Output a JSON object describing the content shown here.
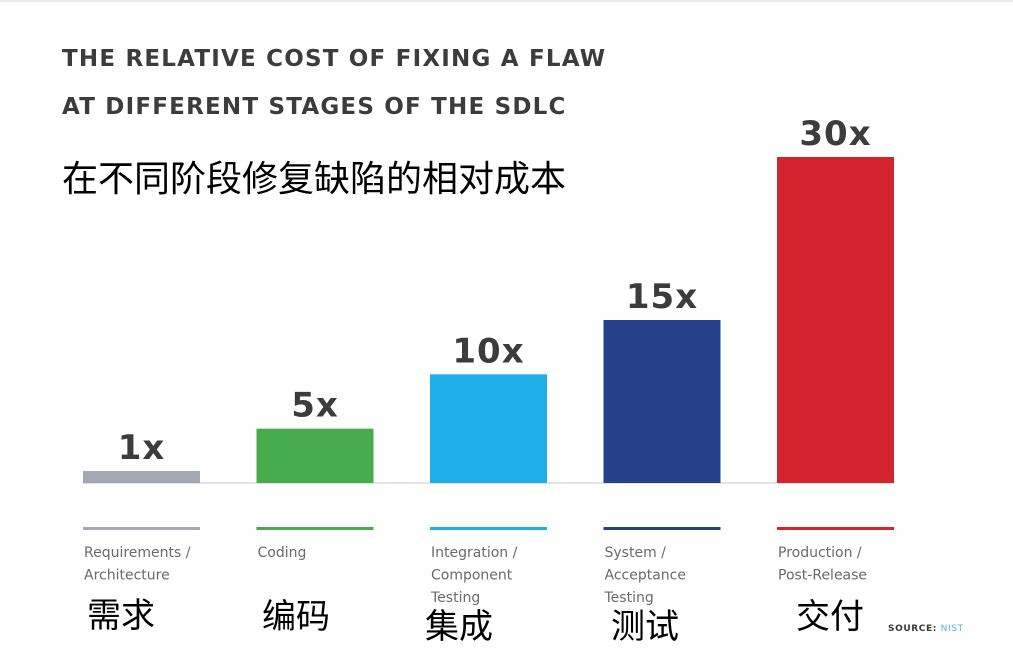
{
  "chart_data": {
    "type": "bar",
    "title": "THE RELATIVE COST OF FIXING A FLAW",
    "title_line2": "AT DIFFERENT STAGES OF THE SDLC",
    "subtitle": "在不同阶段修复缺陷的相对成本",
    "categories": [
      [
        "Requirements /",
        "Architecture"
      ],
      [
        "Coding"
      ],
      [
        "Integration /",
        "Component",
        "Testing"
      ],
      [
        "System /",
        "Acceptance",
        "Testing"
      ],
      [
        "Production /",
        "Post-Release"
      ]
    ],
    "categories_zh": [
      "需求",
      "编码",
      "集成",
      "测试",
      "交付"
    ],
    "values": [
      1,
      5,
      10,
      15,
      30
    ],
    "value_labels": [
      "1x",
      "5x",
      "10x",
      "15x",
      "30x"
    ],
    "colors": [
      "#a3a8b3",
      "#46ac4e",
      "#1eaee8",
      "#25418a",
      "#d2232e"
    ],
    "ylim": [
      0,
      30
    ],
    "grid": false,
    "source_label": "SOURCE:",
    "source_name": "NIST"
  }
}
